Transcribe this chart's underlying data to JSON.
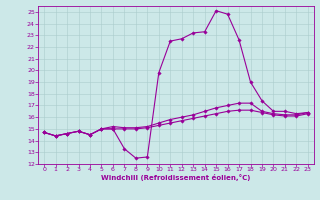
{
  "line1_x": [
    0,
    1,
    2,
    3,
    4,
    5,
    6,
    7,
    8,
    9,
    10,
    11,
    12,
    13,
    14,
    15,
    16,
    17,
    18,
    19,
    20,
    21,
    22,
    23
  ],
  "line1_y": [
    14.7,
    14.4,
    14.6,
    14.8,
    14.5,
    15.0,
    15.0,
    13.3,
    12.5,
    12.6,
    19.8,
    22.5,
    22.7,
    23.2,
    23.3,
    25.1,
    24.8,
    22.6,
    19.0,
    17.4,
    16.5,
    16.5,
    16.3,
    16.4
  ],
  "line2_x": [
    0,
    1,
    2,
    3,
    4,
    5,
    6,
    7,
    8,
    9,
    10,
    11,
    12,
    13,
    14,
    15,
    16,
    17,
    18,
    19,
    20,
    21,
    22,
    23
  ],
  "line2_y": [
    14.7,
    14.4,
    14.6,
    14.8,
    14.5,
    15.0,
    15.2,
    15.1,
    15.1,
    15.2,
    15.5,
    15.8,
    16.0,
    16.2,
    16.5,
    16.8,
    17.0,
    17.2,
    17.2,
    16.5,
    16.3,
    16.2,
    16.2,
    16.4
  ],
  "line3_x": [
    0,
    1,
    2,
    3,
    4,
    5,
    6,
    7,
    8,
    9,
    10,
    11,
    12,
    13,
    14,
    15,
    16,
    17,
    18,
    19,
    20,
    21,
    22,
    23
  ],
  "line3_y": [
    14.7,
    14.4,
    14.6,
    14.8,
    14.5,
    15.0,
    15.0,
    15.0,
    15.0,
    15.1,
    15.3,
    15.5,
    15.7,
    15.9,
    16.1,
    16.3,
    16.5,
    16.6,
    16.6,
    16.4,
    16.2,
    16.1,
    16.1,
    16.3
  ],
  "bg_color": "#cce8e8",
  "line_color": "#990099",
  "grid_color": "#aacccc",
  "xlabel": "Windchill (Refroidissement éolien,°C)",
  "ylim": [
    12,
    25.5
  ],
  "xlim": [
    -0.5,
    23.5
  ],
  "yticks": [
    12,
    13,
    14,
    15,
    16,
    17,
    18,
    19,
    20,
    21,
    22,
    23,
    24,
    25
  ],
  "xticks": [
    0,
    1,
    2,
    3,
    4,
    5,
    6,
    7,
    8,
    9,
    10,
    11,
    12,
    13,
    14,
    15,
    16,
    17,
    18,
    19,
    20,
    21,
    22,
    23
  ]
}
